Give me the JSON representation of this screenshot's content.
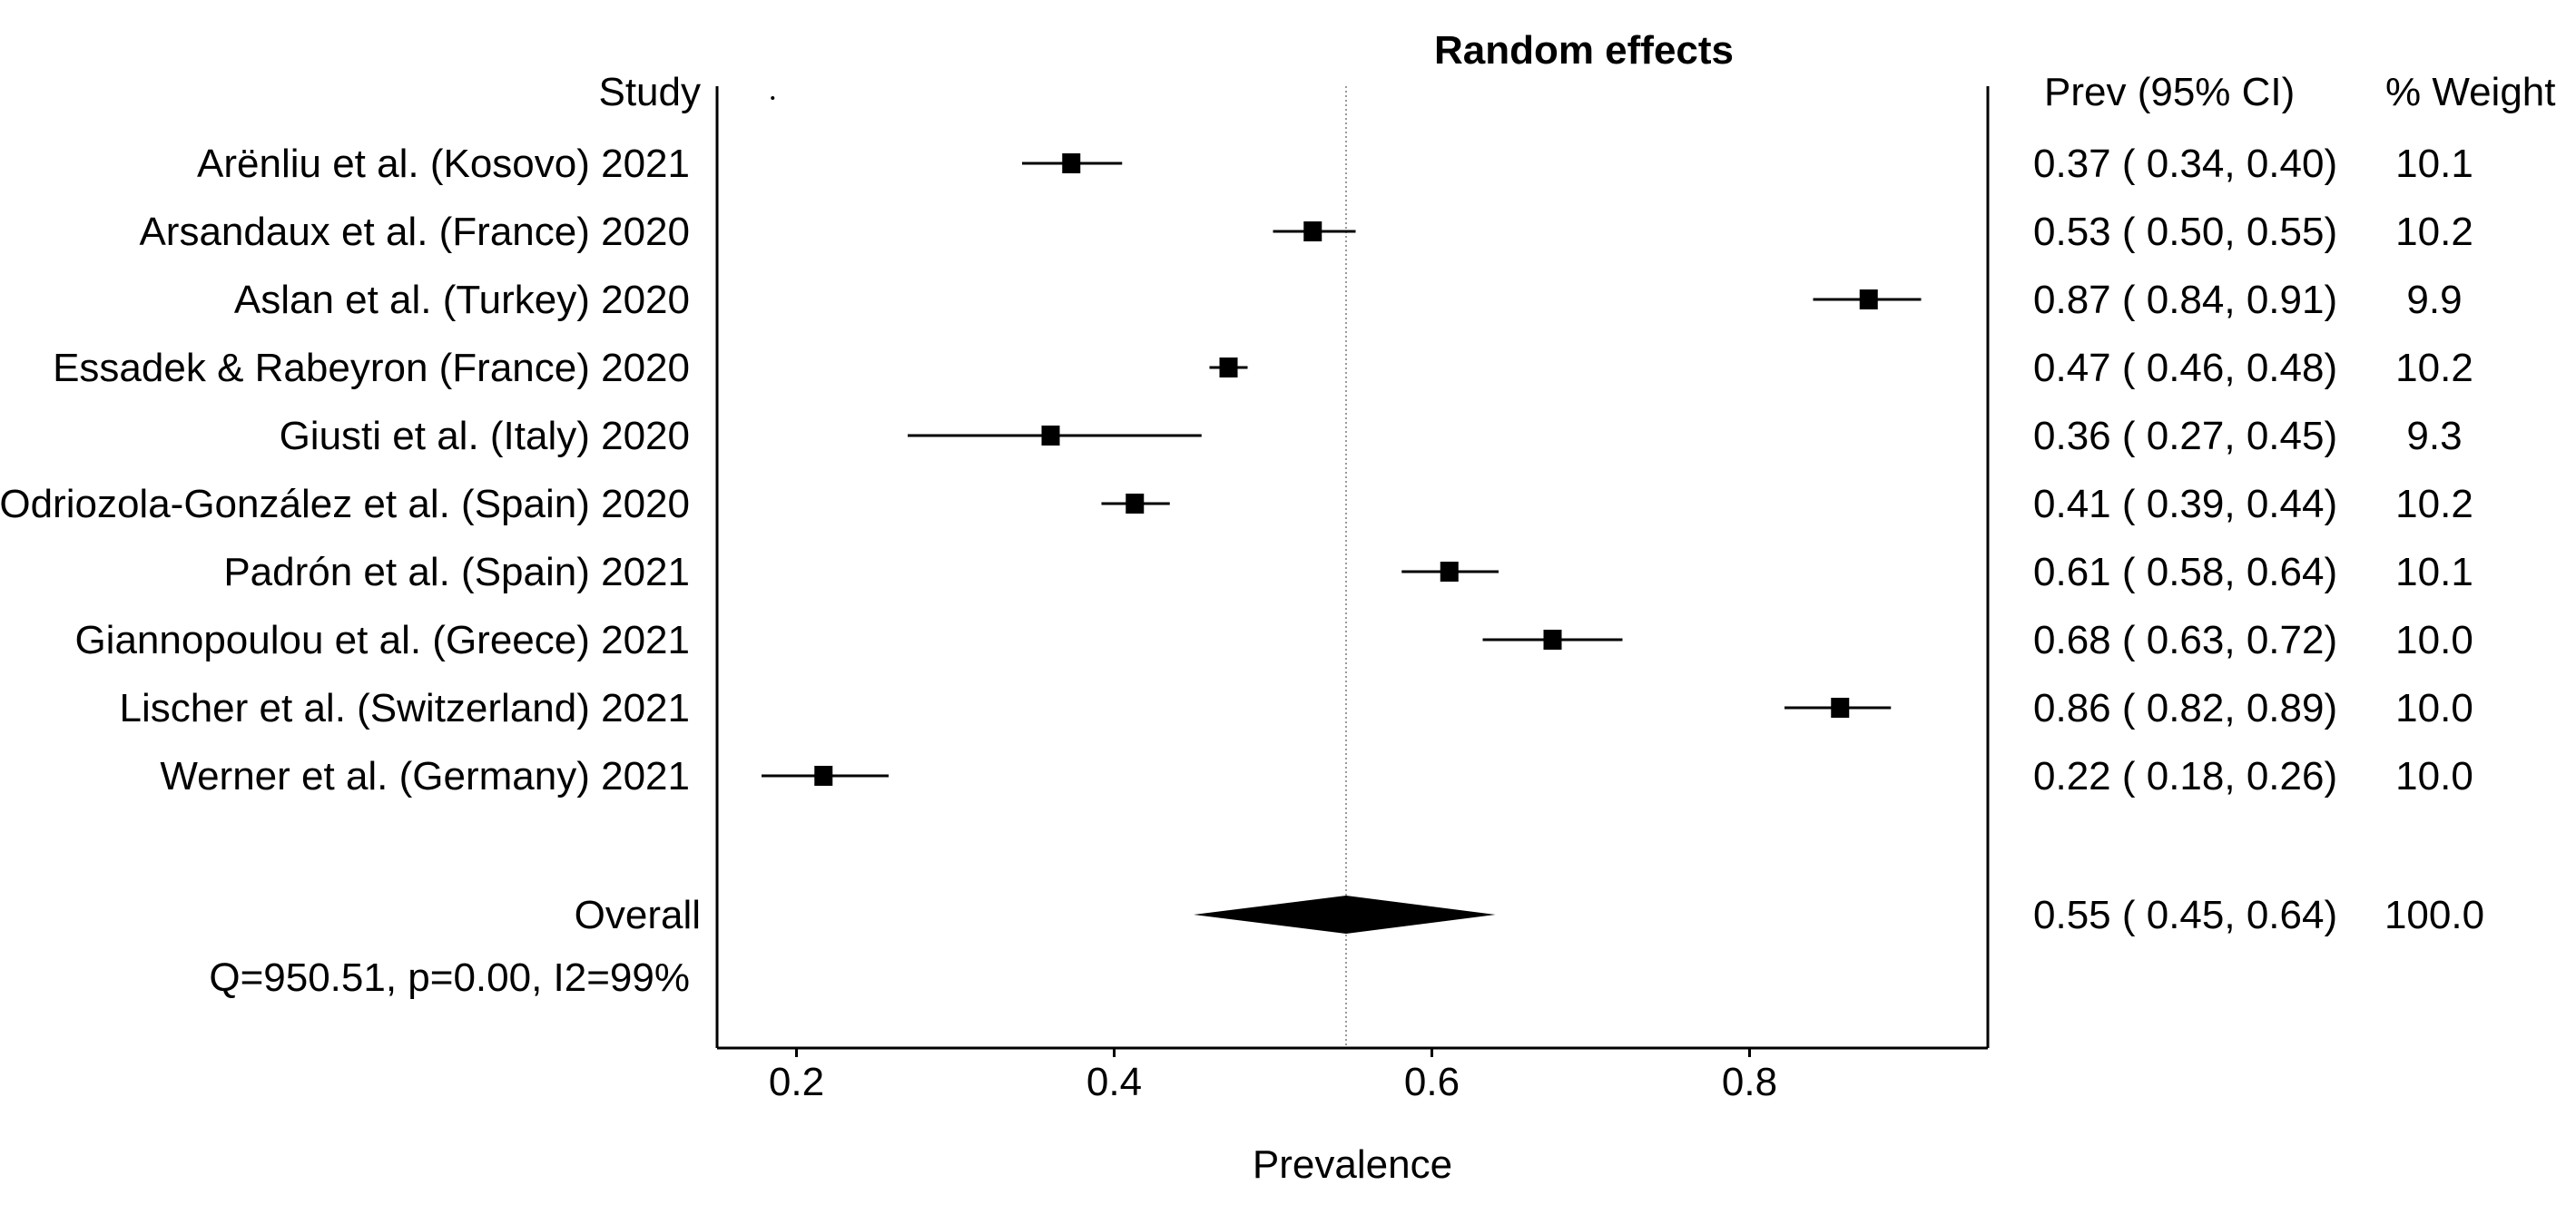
{
  "chart_data": {
    "type": "forest",
    "title": "Random effects",
    "xlabel": "Prevalence",
    "xlim": [
      0.15,
      0.95
    ],
    "xticks": [
      0.2,
      0.4,
      0.6,
      0.8
    ],
    "xtick_labels": [
      "0.2",
      "0.4",
      "0.6",
      "0.8"
    ],
    "reference_line": 0.546,
    "headers": {
      "study": "Study",
      "estimate": "Prev (95% CI)",
      "weight": "% Weight"
    },
    "studies": [
      {
        "label": "Arënliu et al. (Kosovo) 2021",
        "est": 0.373,
        "lo": 0.342,
        "hi": 0.405,
        "est_text": "0.37",
        "lo_text": "0.34",
        "hi_text": "0.40",
        "weight": "10.1"
      },
      {
        "label": "Arsandaux et al. (France) 2020",
        "est": 0.525,
        "lo": 0.5,
        "hi": 0.552,
        "est_text": "0.53",
        "lo_text": "0.50",
        "hi_text": "0.55",
        "weight": "10.2"
      },
      {
        "label": "Aslan et al. (Turkey) 2020",
        "est": 0.875,
        "lo": 0.84,
        "hi": 0.908,
        "est_text": "0.87",
        "lo_text": "0.84",
        "hi_text": "0.91",
        "weight": "9.9"
      },
      {
        "label": "Essadek & Rabeyron (France) 2020",
        "est": 0.472,
        "lo": 0.46,
        "hi": 0.484,
        "est_text": "0.47",
        "lo_text": "0.46",
        "hi_text": "0.48",
        "weight": "10.2"
      },
      {
        "label": "Giusti et al. (Italy) 2020",
        "est": 0.36,
        "lo": 0.27,
        "hi": 0.455,
        "est_text": "0.36",
        "lo_text": "0.27",
        "hi_text": "0.45",
        "weight": "9.3"
      },
      {
        "label": "Odriozola-González et al. (Spain) 2020",
        "est": 0.413,
        "lo": 0.392,
        "hi": 0.435,
        "est_text": "0.41",
        "lo_text": "0.39",
        "hi_text": "0.44",
        "weight": "10.2"
      },
      {
        "label": "Padrón et al. (Spain) 2021",
        "est": 0.611,
        "lo": 0.581,
        "hi": 0.642,
        "est_text": "0.61",
        "lo_text": "0.58",
        "hi_text": "0.64",
        "weight": "10.1"
      },
      {
        "label": "Giannopoulou et al. (Greece) 2021",
        "est": 0.676,
        "lo": 0.632,
        "hi": 0.72,
        "est_text": "0.68",
        "lo_text": "0.63",
        "hi_text": "0.72",
        "weight": "10.0"
      },
      {
        "label": "Lischer et al. (Switzerland) 2021",
        "est": 0.857,
        "lo": 0.822,
        "hi": 0.889,
        "est_text": "0.86",
        "lo_text": "0.82",
        "hi_text": "0.89",
        "weight": "10.0"
      },
      {
        "label": "Werner et al. (Germany) 2021",
        "est": 0.217,
        "lo": 0.178,
        "hi": 0.258,
        "est_text": "0.22",
        "lo_text": "0.18",
        "hi_text": "0.26",
        "weight": "10.0"
      }
    ],
    "overall": {
      "label": "Overall",
      "est": 0.546,
      "lo": 0.45,
      "hi": 0.64,
      "est_text": "0.55",
      "lo_text": "0.45",
      "hi_text": "0.64",
      "weight": "100.0"
    },
    "heterogeneity": "Q=950.51, p=0.00, I2=99%"
  }
}
